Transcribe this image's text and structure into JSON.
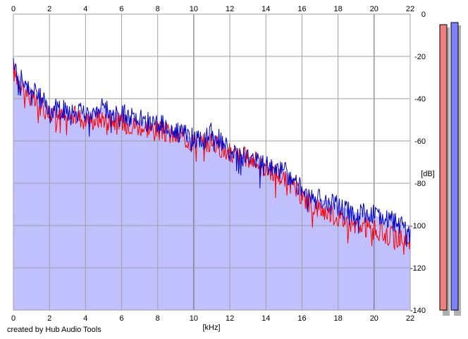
{
  "footer": {
    "credit": "created by Hub Audio Tools"
  },
  "chart_data": {
    "type": "area",
    "xlabel": "[kHz]",
    "ylabel": "[dB]",
    "xlim": [
      0,
      22
    ],
    "ylim": [
      -140,
      0
    ],
    "x_ticks": [
      0,
      2,
      4,
      6,
      8,
      10,
      12,
      14,
      16,
      18,
      20,
      22
    ],
    "y_ticks": [
      0,
      -20,
      -40,
      -60,
      -80,
      -100,
      -120,
      -140
    ],
    "grid": true,
    "fill_color": "#c0c0ff",
    "series": [
      {
        "color": "#ff0000",
        "x": [
          0,
          0.5,
          1,
          1.5,
          2,
          2.5,
          3,
          3.5,
          4,
          4.5,
          5,
          5.5,
          6,
          6.5,
          7,
          7.5,
          8,
          8.5,
          9,
          9.5,
          10,
          10.5,
          11,
          11.5,
          12,
          12.5,
          13,
          13.5,
          14,
          14.5,
          15,
          15.5,
          16,
          16.5,
          17,
          17.5,
          18,
          18.5,
          19,
          19.5,
          20,
          20.5,
          21,
          21.5,
          22
        ],
        "values": [
          -27,
          -34,
          -40,
          -44,
          -46,
          -48,
          -49,
          -48,
          -50,
          -50,
          -49,
          -50,
          -51,
          -52,
          -53,
          -54,
          -55,
          -56,
          -58,
          -59,
          -60,
          -61,
          -61,
          -63,
          -66,
          -67,
          -68,
          -70,
          -73,
          -75,
          -78,
          -82,
          -86,
          -90,
          -92,
          -94,
          -96,
          -98,
          -100,
          -101,
          -102,
          -104,
          -105,
          -106,
          -107
        ]
      },
      {
        "color": "#0000cc",
        "x": [
          0,
          0.5,
          1,
          1.5,
          2,
          2.5,
          3,
          3.5,
          4,
          4.5,
          5,
          5.5,
          6,
          6.5,
          7,
          7.5,
          8,
          8.5,
          9,
          9.5,
          10,
          10.5,
          11,
          11.5,
          12,
          12.5,
          13,
          13.5,
          14,
          14.5,
          15,
          15.5,
          16,
          16.5,
          17,
          17.5,
          18,
          18.5,
          19,
          19.5,
          20,
          20.5,
          21,
          21.5,
          22
        ],
        "values": [
          -25,
          -31,
          -35,
          -40,
          -44,
          -45,
          -46,
          -46,
          -47,
          -45,
          -44,
          -46,
          -47,
          -49,
          -50,
          -51,
          -52,
          -53,
          -56,
          -57,
          -59,
          -60,
          -56,
          -60,
          -65,
          -68,
          -67,
          -69,
          -72,
          -73,
          -74,
          -78,
          -83,
          -86,
          -88,
          -88,
          -91,
          -92,
          -94,
          -94,
          -95,
          -97,
          -98,
          -100,
          -104
        ]
      }
    ],
    "level_meters": [
      {
        "color": "#f08080",
        "value": -5
      },
      {
        "color": "#8080f8",
        "value": -4
      }
    ]
  }
}
